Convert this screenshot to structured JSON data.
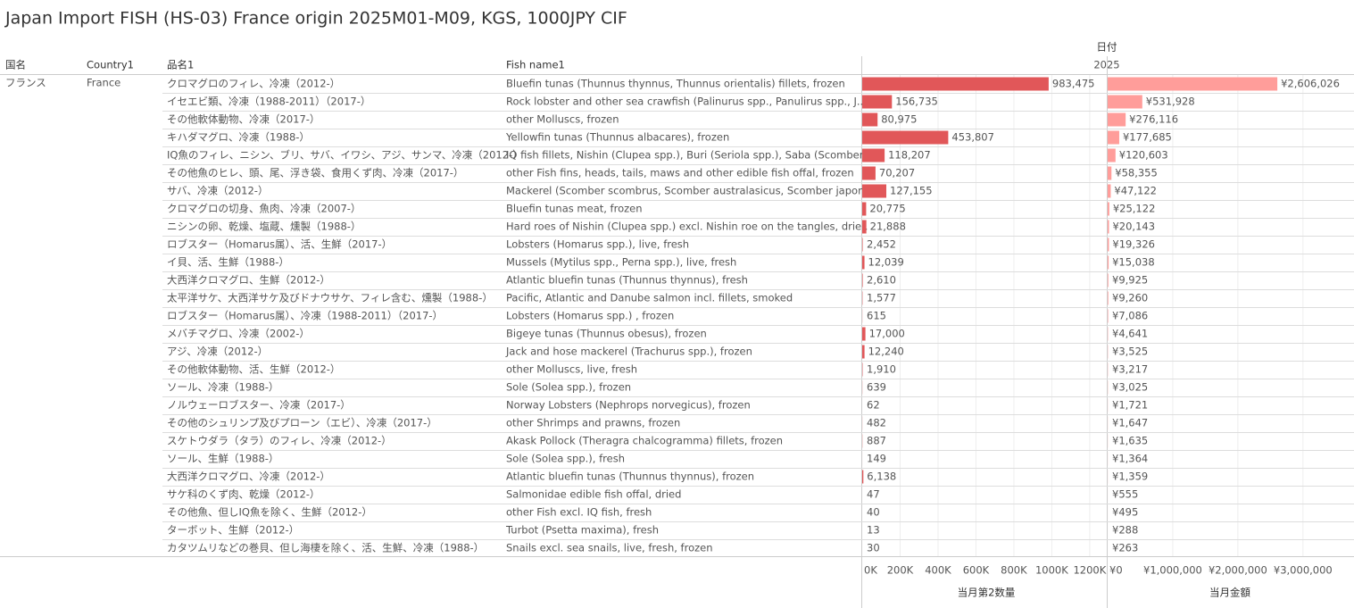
{
  "chart_data": {
    "type": "bar",
    "title": "Japan Import FISH (HS-03) France origin 2025M01-M09, KGS, 1000JPY CIF",
    "column_group": "日付",
    "period": "2025",
    "columns": [
      "国名",
      "Country1",
      "品名1",
      "Fish name1"
    ],
    "country_ja": "フランス",
    "country_en": "France",
    "categories": [
      "クロマグロのフィレ、冷凍（2012-）",
      "イセエビ類、冷凍（1988-2011）（2017-）",
      "その他軟体動物、冷凍（2017-）",
      "キハダマグロ、冷凍（1988-）",
      "IQ魚のフィレ、ニシン、ブリ、サバ、イワシ、アジ、サンマ、冷凍（2012-）",
      "その他魚のヒレ、頭、尾、浮き袋、食用くず肉、冷凍（2017-）",
      "サバ、冷凍（2012-）",
      "クロマグロの切身、魚肉、冷凍（2007-）",
      "ニシンの卵、乾燥、塩蔵、燻製（1988-）",
      "ロブスター（Homarus属）、活、生鮮（2017-）",
      "イ貝、活、生鮮（1988-）",
      "大西洋クロマグロ、生鮮（2012-）",
      "太平洋サケ、大西洋サケ及びドナウサケ、フィレ含む、燻製（1988-）",
      "ロブスター（Homarus属）、冷凍（1988-2011）（2017-）",
      "メバチマグロ、冷凍（2002-）",
      "アジ、冷凍（2012-）",
      "その他軟体動物、活、生鮮（2012-）",
      "ソール、冷凍（1988-）",
      "ノルウェーロブスター、冷凍（2017-）",
      "その他のシュリンプ及びプローン（エビ）、冷凍（2017-）",
      "スケトウダラ（タラ）のフィレ、冷凍（2012-）",
      "ソール、生鮮（1988-）",
      "大西洋クロマグロ、冷凍（2012-）",
      "サケ科のくず肉、乾燥（2012-）",
      "その他魚、但しIQ魚を除く、生鮮（2012-）",
      "ターボット、生鮮（2012-）",
      "カタツムリなどの巻貝、但し海棲を除く、活、生鮮、冷凍（1988-）"
    ],
    "fish_names": [
      "Bluefin tunas (Thunnus thynnus, Thunnus orientalis) fillets, frozen",
      "Rock lobster and other sea crawfish (Palinurus spp., Panulirus spp., J..",
      "other Molluscs, frozen",
      "Yellowfin tunas (Thunnus albacares), frozen",
      "IQ fish fillets, Nishin (Clupea spp.), Buri (Seriola spp.), Saba (Scomber..",
      "other Fish fins, heads, tails, maws and other edible fish offal, frozen",
      "Mackerel (Scomber scombrus, Scomber australasicus, Scomber japon..",
      "Bluefin tunas meat, frozen",
      "Hard roes of Nishin (Clupea spp.) excl. Nishin roe on the tangles, drie..",
      "Lobsters (Homarus spp.), live, fresh",
      "Mussels (Mytilus spp., Perna spp.), live, fresh",
      "Atlantic bluefin tunas (Thunnus thynnus), fresh",
      "Pacific, Atlantic and Danube salmon incl. fillets, smoked",
      "Lobsters (Homarus spp.) , frozen",
      "Bigeye tunas (Thunnus obesus), frozen",
      "Jack and hose mackerel (Trachurus spp.), frozen",
      "other Molluscs, live, fresh",
      "Sole (Solea spp.), frozen",
      "Norway Lobsters (Nephrops norvegicus), frozen",
      "other Shrimps and prawns, frozen",
      "Akask Pollock (Theragra chalcogramma) fillets, frozen",
      "Sole (Solea spp.), fresh",
      "Atlantic bluefin tunas (Thunnus thynnus), frozen",
      "Salmonidae edible fish offal, dried",
      "other Fish excl. IQ fish, fresh",
      "Turbot (Psetta maxima), fresh",
      "Snails excl. sea snails, live, fresh, frozen"
    ],
    "series": [
      {
        "name": "当月第2数量",
        "color": "#e15759",
        "values": [
          983475,
          156735,
          80975,
          453807,
          118207,
          70207,
          127155,
          20775,
          21888,
          2452,
          12039,
          2610,
          1577,
          615,
          17000,
          12240,
          1910,
          639,
          62,
          482,
          887,
          149,
          6138,
          47,
          40,
          13,
          30
        ],
        "value_labels": [
          "983,475",
          "156,735",
          "80,975",
          "453,807",
          "118,207",
          "70,207",
          "127,155",
          "20,775",
          "21,888",
          "2,452",
          "12,039",
          "2,610",
          "1,577",
          "615",
          "17,000",
          "12,240",
          "1,910",
          "639",
          "62",
          "482",
          "887",
          "149",
          "6,138",
          "47",
          "40",
          "13",
          "30"
        ]
      },
      {
        "name": "当月金額",
        "color": "#ff9d9a",
        "axis": "x2",
        "values": [
          2606026,
          531928,
          276116,
          177685,
          120603,
          58355,
          47122,
          25122,
          20143,
          19326,
          15038,
          9925,
          9260,
          7086,
          4641,
          3525,
          3217,
          3025,
          1721,
          1647,
          1635,
          1364,
          1359,
          555,
          495,
          288,
          263
        ],
        "value_labels": [
          "¥2,606,026",
          "¥531,928",
          "¥276,116",
          "¥177,685",
          "¥120,603",
          "¥58,355",
          "¥47,122",
          "¥25,122",
          "¥20,143",
          "¥19,326",
          "¥15,038",
          "¥9,925",
          "¥9,260",
          "¥7,086",
          "¥4,641",
          "¥3,525",
          "¥3,217",
          "¥3,025",
          "¥1,721",
          "¥1,647",
          "¥1,635",
          "¥1,364",
          "¥1,359",
          "¥555",
          "¥495",
          "¥288",
          "¥263"
        ]
      }
    ],
    "xlim": [
      0,
      1290000
    ],
    "xticks": [
      {
        "value": 0,
        "label": "0K"
      },
      {
        "value": 200000,
        "label": "200K"
      },
      {
        "value": 400000,
        "label": "400K"
      },
      {
        "value": 600000,
        "label": "600K"
      },
      {
        "value": 800000,
        "label": "800K"
      },
      {
        "value": 1000000,
        "label": "1000K"
      },
      {
        "value": 1200000,
        "label": "1200K"
      }
    ],
    "x2lim": [
      0,
      3770000
    ],
    "x2ticks": [
      {
        "value": 0,
        "label": "¥0"
      },
      {
        "value": 1000000,
        "label": "¥1,000,000"
      },
      {
        "value": 2000000,
        "label": "¥2,000,000"
      },
      {
        "value": 3000000,
        "label": "¥3,000,000"
      }
    ],
    "grid": true
  }
}
